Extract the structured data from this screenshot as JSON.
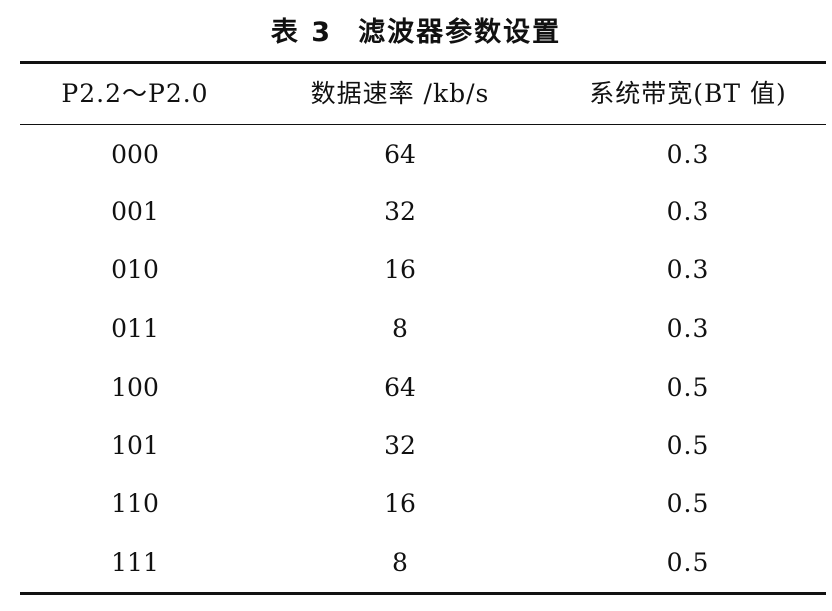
{
  "caption": {
    "number": "表 3",
    "title": "滤波器参数设置"
  },
  "table": {
    "headers": [
      "P2.2～P2.0",
      "数据速率 /kb/s",
      "系统带宽(BT 值)"
    ],
    "rows": [
      [
        "000",
        "64",
        "0.3"
      ],
      [
        "001",
        "32",
        "0.3"
      ],
      [
        "010",
        "16",
        "0.3"
      ],
      [
        "011",
        "8",
        "0.3"
      ],
      [
        "100",
        "64",
        "0.5"
      ],
      [
        "101",
        "32",
        "0.5"
      ],
      [
        "110",
        "16",
        "0.5"
      ],
      [
        "111",
        "8",
        "0.5"
      ]
    ]
  }
}
